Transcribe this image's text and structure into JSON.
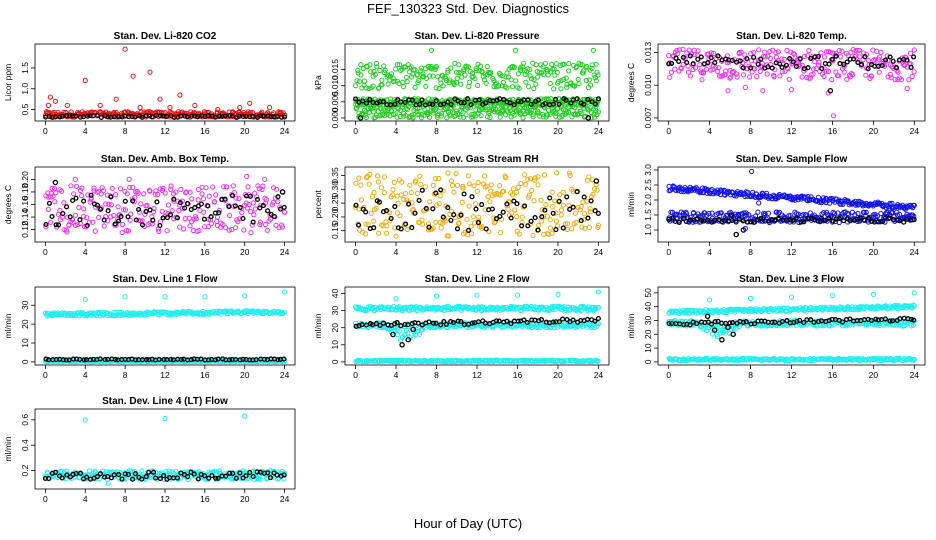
{
  "title": "FEF_130323  Std. Dev. Diagnostics",
  "xlabel": "Hour of Day (UTC)",
  "colors": {
    "red": "#ee1111",
    "green": "#22cc22",
    "magenta": "#ee33ee",
    "orange": "#eeaa11",
    "blue": "#1111ee",
    "cyan": "#22eeee",
    "black": "#000000"
  },
  "chart_data": [
    {
      "type": "scatter",
      "title": "Stan. Dev. Li-820 CO2",
      "ylabel": "Licor ppm",
      "xlim": [
        0,
        24
      ],
      "ylim": [
        0.3,
        2.0
      ],
      "xticks": [
        "0",
        "4",
        "8",
        "12",
        "16",
        "20",
        "24"
      ],
      "yticks": [
        "0.5",
        "1.0",
        "1.5"
      ],
      "grid": false,
      "series": [
        {
          "color": "red",
          "band": [
            0.32,
            0.45
          ],
          "outliers": [
            [
              0.3,
              0.6
            ],
            [
              0.5,
              0.8
            ],
            [
              1.0,
              0.7
            ],
            [
              2.2,
              0.6
            ],
            [
              4.0,
              1.2
            ],
            [
              5.5,
              0.6
            ],
            [
              7.1,
              0.75
            ],
            [
              8.0,
              1.95
            ],
            [
              8.8,
              1.3
            ],
            [
              9.5,
              0.55
            ],
            [
              10.5,
              1.4
            ],
            [
              11.5,
              0.75
            ],
            [
              12.5,
              0.55
            ],
            [
              13.5,
              0.85
            ],
            [
              15.0,
              0.6
            ],
            [
              17.3,
              0.5
            ],
            [
              19.5,
              0.55
            ],
            [
              20.5,
              0.65
            ],
            [
              22.5,
              0.55
            ]
          ]
        },
        {
          "color": "black",
          "band": [
            0.31,
            0.36
          ],
          "outliers": []
        }
      ]
    },
    {
      "type": "scatter",
      "title": "Stan. Dev. Li-820 Pressure",
      "ylabel": "kPa",
      "xlim": [
        0,
        24
      ],
      "ylim": [
        0,
        0.022
      ],
      "xticks": [
        "0",
        "4",
        "8",
        "12",
        "16",
        "20",
        "24"
      ],
      "yticks": [
        "0.000",
        "0.005",
        "0.010",
        "0.015"
      ],
      "grid": false,
      "series": [
        {
          "color": "green",
          "band": [
            0.0,
            0.004
          ],
          "outliers": []
        },
        {
          "color": "green",
          "band": [
            0.004,
            0.006
          ],
          "outliers": []
        },
        {
          "color": "green",
          "band": [
            0.009,
            0.017
          ],
          "outliers": [
            [
              7.5,
              0.021
            ],
            [
              15.8,
              0.021
            ],
            [
              23.5,
              0.021
            ]
          ]
        },
        {
          "color": "black",
          "band": [
            0.004,
            0.006
          ],
          "outliers": [
            [
              0.5,
              0.0
            ],
            [
              23.0,
              0.0
            ]
          ]
        }
      ]
    },
    {
      "type": "scatter",
      "title": "Stan. Dev. Li-820 Temp.",
      "ylabel": "degrees C",
      "xlim": [
        0,
        24
      ],
      "ylim": [
        0.007,
        0.0135
      ],
      "xticks": [
        "0",
        "4",
        "8",
        "12",
        "16",
        "20",
        "24"
      ],
      "yticks": [
        "0.007",
        "0.010",
        "0.013"
      ],
      "grid": false,
      "series": [
        {
          "color": "magenta",
          "band": [
            0.0105,
            0.0133
          ],
          "outliers": [
            [
              5.8,
              0.0095
            ],
            [
              7.5,
              0.0098
            ],
            [
              9.2,
              0.0095
            ],
            [
              12.0,
              0.0096
            ],
            [
              15.6,
              0.0093
            ],
            [
              16.1,
              0.0072
            ],
            [
              23.3,
              0.0097
            ]
          ]
        },
        {
          "color": "black",
          "band": [
            0.0115,
            0.0127
          ],
          "outliers": [
            [
              15.8,
              0.0095
            ]
          ]
        }
      ]
    },
    {
      "type": "scatter",
      "title": "Stan. Dev. Amb. Box Temp.",
      "ylabel": "degrees C",
      "xlim": [
        0,
        24
      ],
      "ylim": [
        0.105,
        0.215
      ],
      "xticks": [
        "0",
        "4",
        "8",
        "12",
        "16",
        "20",
        "24"
      ],
      "yticks": [
        "0.12",
        "0.14",
        "0.16",
        "0.18",
        "0.20"
      ],
      "grid": false,
      "series": [
        {
          "color": "magenta",
          "band": [
            0.115,
            0.19
          ],
          "outliers": [
            [
              3.0,
              0.2
            ],
            [
              8.4,
              0.2
            ],
            [
              20.2,
              0.205
            ],
            [
              22.0,
              0.2
            ]
          ]
        },
        {
          "color": "black",
          "band": [
            0.125,
            0.175
          ],
          "outliers": [
            [
              1.0,
              0.195
            ],
            [
              23.8,
              0.18
            ]
          ]
        }
      ]
    },
    {
      "type": "scatter",
      "title": "Stan. Dev. Gas Stream RH",
      "ylabel": "percent",
      "xlim": [
        0,
        24
      ],
      "ylim": [
        0.12,
        0.37
      ],
      "xticks": [
        "0",
        "4",
        "8",
        "12",
        "16",
        "20",
        "24"
      ],
      "yticks": [
        "0.15",
        "0.20",
        "0.25",
        "0.30",
        "0.35"
      ],
      "grid": false,
      "series": [
        {
          "color": "orange",
          "band": [
            0.13,
            0.36
          ],
          "outliers": []
        },
        {
          "color": "black",
          "band": [
            0.15,
            0.3
          ],
          "outliers": [
            [
              23.8,
              0.33
            ]
          ]
        }
      ]
    },
    {
      "type": "scatter",
      "title": "Stan. Dev. Sample Flow",
      "ylabel": "ml/min",
      "xlim": [
        0,
        24
      ],
      "ylim": [
        0.7,
        3.0
      ],
      "xticks": [
        "0",
        "4",
        "8",
        "12",
        "16",
        "20",
        "24"
      ],
      "yticks": [
        "1.0",
        "1.5",
        "2.0",
        "2.5",
        "3.0"
      ],
      "grid": false,
      "series": [
        {
          "color": "blue",
          "band": [
            2.2,
            2.5
          ],
          "trend": [
            2.4,
            1.75
          ],
          "outliers": [
            [
              8.1,
              2.95
            ],
            [
              9.0,
              2.1
            ]
          ]
        },
        {
          "color": "blue",
          "band": [
            1.25,
            1.6
          ],
          "outliers": [
            [
              7.5,
              1.05
            ],
            [
              8.8,
              1.9
            ]
          ]
        },
        {
          "color": "black",
          "band": [
            1.25,
            1.4
          ],
          "outliers": [
            [
              6.6,
              0.85
            ],
            [
              7.3,
              1.0
            ],
            [
              6.1,
              1.5
            ]
          ]
        }
      ]
    },
    {
      "type": "scatter",
      "title": "Stan. Dev. Line 1 Flow",
      "ylabel": "ml/min",
      "xlim": [
        0,
        24
      ],
      "ylim": [
        0,
        38
      ],
      "xticks": [
        "0",
        "4",
        "8",
        "12",
        "16",
        "20",
        "24"
      ],
      "yticks": [
        "0",
        "10",
        "20",
        "30"
      ],
      "grid": false,
      "series": [
        {
          "color": "cyan",
          "band": [
            23.5,
            26.5
          ],
          "trend": [
            25,
            26.5
          ],
          "outliers": [
            [
              4.0,
              33
            ],
            [
              8.0,
              34.5
            ],
            [
              12.0,
              34.5
            ],
            [
              16.0,
              34.5
            ],
            [
              20.0,
              35
            ],
            [
              24.0,
              37
            ]
          ]
        },
        {
          "color": "cyan",
          "band": [
            0.2,
            0.8
          ],
          "outliers": []
        },
        {
          "color": "black",
          "band": [
            1.0,
            1.6
          ],
          "outliers": []
        }
      ]
    },
    {
      "type": "scatter",
      "title": "Stan. Dev. Line 2 Flow",
      "ylabel": "ml/min",
      "xlim": [
        0,
        24
      ],
      "ylim": [
        0,
        42
      ],
      "xticks": [
        "0",
        "4",
        "8",
        "12",
        "16",
        "20",
        "24"
      ],
      "yticks": [
        "0",
        "10",
        "20",
        "30",
        "40"
      ],
      "grid": false,
      "series": [
        {
          "color": "cyan",
          "band": [
            30.0,
            32.5
          ],
          "outliers": [
            [
              4.0,
              37
            ],
            [
              8.0,
              38.5
            ],
            [
              12.0,
              39
            ],
            [
              16.0,
              39
            ],
            [
              20.0,
              39.5
            ],
            [
              24.0,
              41
            ]
          ]
        },
        {
          "color": "cyan",
          "band": [
            20.0,
            23.0
          ],
          "dip": [
            3.0,
            7.0,
            9.0
          ],
          "outliers": []
        },
        {
          "color": "cyan",
          "band": [
            0.2,
            1.0
          ],
          "outliers": []
        },
        {
          "color": "black",
          "band": [
            21.0,
            24.5
          ],
          "trend": [
            21.5,
            24.5
          ],
          "outliers": [
            [
              3.7,
              16
            ],
            [
              4.6,
              10
            ],
            [
              5.2,
              13
            ],
            [
              5.7,
              19
            ]
          ]
        }
      ]
    },
    {
      "type": "scatter",
      "title": "Stan. Dev. Line 3 Flow",
      "ylabel": "ml/min",
      "xlim": [
        0,
        24
      ],
      "ylim": [
        0,
        52
      ],
      "xticks": [
        "0",
        "4",
        "8",
        "12",
        "16",
        "20",
        "24"
      ],
      "yticks": [
        "0",
        "10",
        "20",
        "30",
        "40",
        "50"
      ],
      "grid": false,
      "series": [
        {
          "color": "cyan",
          "band": [
            35.0,
            39.0
          ],
          "trend": [
            36,
            40
          ],
          "outliers": [
            [
              4.0,
              45
            ],
            [
              8.0,
              46
            ],
            [
              12.0,
              47
            ],
            [
              16.0,
              48
            ],
            [
              20.0,
              49
            ],
            [
              24.0,
              50
            ]
          ]
        },
        {
          "color": "cyan",
          "band": [
            26.0,
            30.0
          ],
          "dip": [
            3.0,
            7.0,
            10.0
          ],
          "outliers": []
        },
        {
          "color": "cyan",
          "band": [
            1.0,
            2.5
          ],
          "outliers": []
        },
        {
          "color": "black",
          "band": [
            27.0,
            31.0
          ],
          "trend": [
            27.5,
            31
          ],
          "outliers": [
            [
              3.8,
              33
            ],
            [
              4.5,
              23
            ],
            [
              5.2,
              16
            ],
            [
              5.8,
              25
            ],
            [
              6.3,
              20
            ]
          ]
        }
      ]
    },
    {
      "type": "scatter",
      "title": "Stan. Dev. Line 4 (LT) Flow",
      "ylabel": "ml/min",
      "xlim": [
        0,
        24
      ],
      "ylim": [
        0.08,
        0.66
      ],
      "xticks": [
        "0",
        "4",
        "8",
        "12",
        "16",
        "20",
        "24"
      ],
      "yticks": [
        "0.2",
        "0.4",
        "0.6"
      ],
      "grid": false,
      "series": [
        {
          "color": "cyan",
          "band": [
            0.13,
            0.2
          ],
          "outliers": [
            [
              4.0,
              0.6
            ],
            [
              12.0,
              0.61
            ],
            [
              20.0,
              0.63
            ],
            [
              6.3,
              0.1
            ]
          ]
        },
        {
          "color": "black",
          "band": [
            0.13,
            0.19
          ],
          "outliers": []
        }
      ]
    }
  ]
}
